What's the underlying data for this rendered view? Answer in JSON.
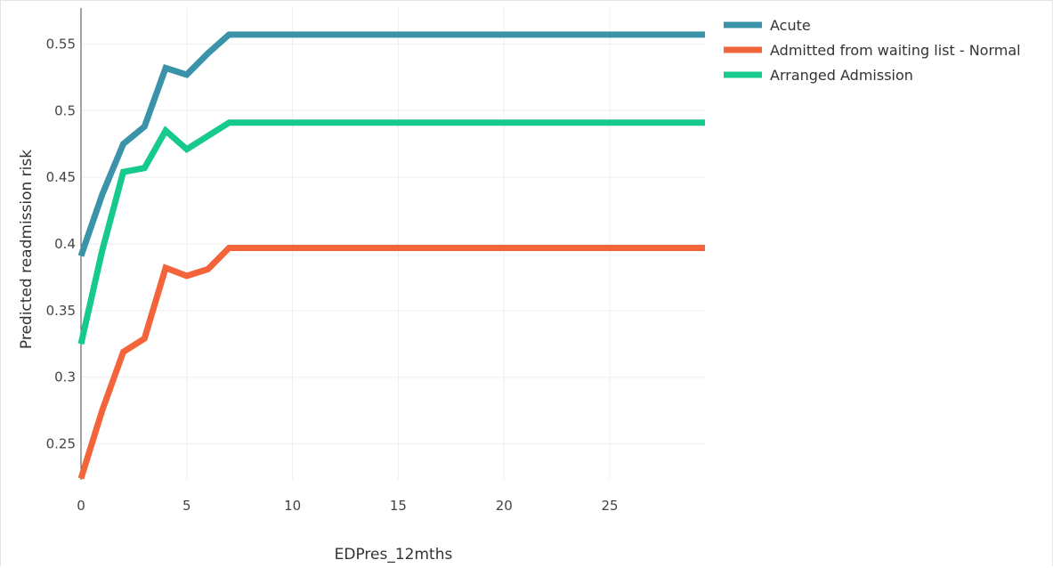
{
  "chart_data": {
    "type": "line",
    "xlabel": "EDPres_12mths",
    "ylabel": "Predicted readmission risk",
    "xlim": [
      0,
      29.5
    ],
    "ylim": [
      0.223,
      0.577
    ],
    "grid": true,
    "legend_position": "top-right",
    "x": [
      0,
      1,
      2,
      3,
      4,
      5,
      6,
      7,
      8,
      9,
      10,
      11,
      12,
      13,
      14,
      15,
      16,
      17,
      18,
      19,
      20,
      21,
      22,
      23,
      24,
      25,
      26,
      27,
      28,
      29,
      29.5
    ],
    "series": [
      {
        "name": "Acute",
        "color": "#3a93a8",
        "values": [
          0.391,
          0.437,
          0.475,
          0.488,
          0.532,
          0.527,
          0.543,
          0.557,
          0.557,
          0.557,
          0.557,
          0.557,
          0.557,
          0.557,
          0.557,
          0.557,
          0.557,
          0.557,
          0.557,
          0.557,
          0.557,
          0.557,
          0.557,
          0.557,
          0.557,
          0.557,
          0.557,
          0.557,
          0.557,
          0.557,
          0.557
        ]
      },
      {
        "name": "Admitted from waiting list - Normal",
        "color": "#f4643a",
        "values": [
          0.224,
          0.275,
          0.319,
          0.329,
          0.382,
          0.376,
          0.381,
          0.397,
          0.397,
          0.397,
          0.397,
          0.397,
          0.397,
          0.397,
          0.397,
          0.397,
          0.397,
          0.397,
          0.397,
          0.397,
          0.397,
          0.397,
          0.397,
          0.397,
          0.397,
          0.397,
          0.397,
          0.397,
          0.397,
          0.397,
          0.397
        ]
      },
      {
        "name": "Arranged Admission",
        "color": "#16c98d",
        "values": [
          0.325,
          0.395,
          0.454,
          0.457,
          0.485,
          0.471,
          0.481,
          0.491,
          0.491,
          0.491,
          0.491,
          0.491,
          0.491,
          0.491,
          0.491,
          0.491,
          0.491,
          0.491,
          0.491,
          0.491,
          0.491,
          0.491,
          0.491,
          0.491,
          0.491,
          0.491,
          0.491,
          0.491,
          0.491,
          0.491,
          0.491
        ]
      }
    ],
    "x_ticks": [
      "0",
      "5",
      "10",
      "15",
      "20",
      "25"
    ],
    "x_tick_values": [
      0,
      5,
      10,
      15,
      20,
      25
    ],
    "y_ticks": [
      "0.25",
      "0.3",
      "0.35",
      "0.4",
      "0.45",
      "0.5",
      "0.55"
    ],
    "y_tick_values": [
      0.25,
      0.3,
      0.35,
      0.4,
      0.45,
      0.5,
      0.55
    ]
  }
}
